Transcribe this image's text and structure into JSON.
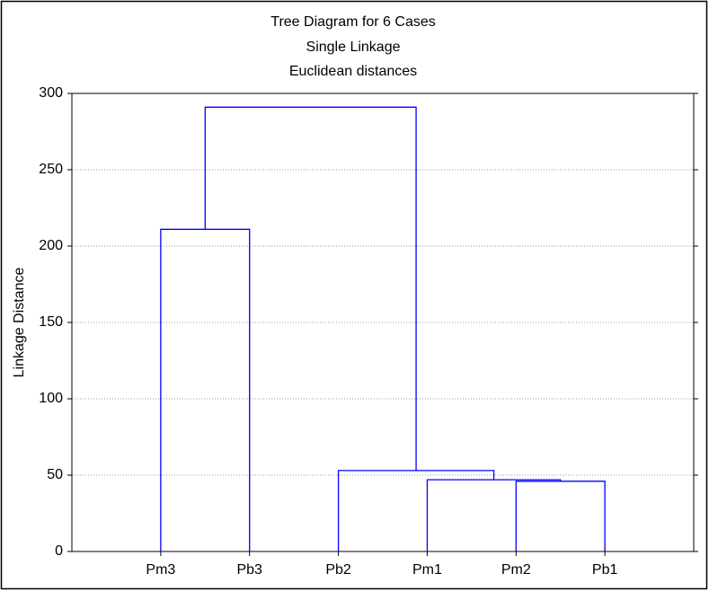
{
  "chart_data": {
    "type": "dendrogram",
    "title": [
      "Tree Diagram for 6 Cases",
      "Single Linkage",
      "Euclidean distances"
    ],
    "y_label": "Linkage Distance",
    "categories": [
      "Pm3",
      "Pb3",
      "Pb2",
      "Pm1",
      "Pm2",
      "Pb1"
    ],
    "merges": [
      {
        "join": [
          4,
          5
        ],
        "height": 46
      },
      {
        "join": [
          3,
          6
        ],
        "height": 47
      },
      {
        "join": [
          2,
          7
        ],
        "height": 53
      },
      {
        "join": [
          0,
          1
        ],
        "height": 211
      },
      {
        "join": [
          9,
          8
        ],
        "height": 291
      }
    ],
    "color": "#0000ff",
    "ylim": [
      0,
      300
    ],
    "yticks": [
      0,
      50,
      100,
      150,
      200,
      250,
      300
    ],
    "grid": true
  }
}
